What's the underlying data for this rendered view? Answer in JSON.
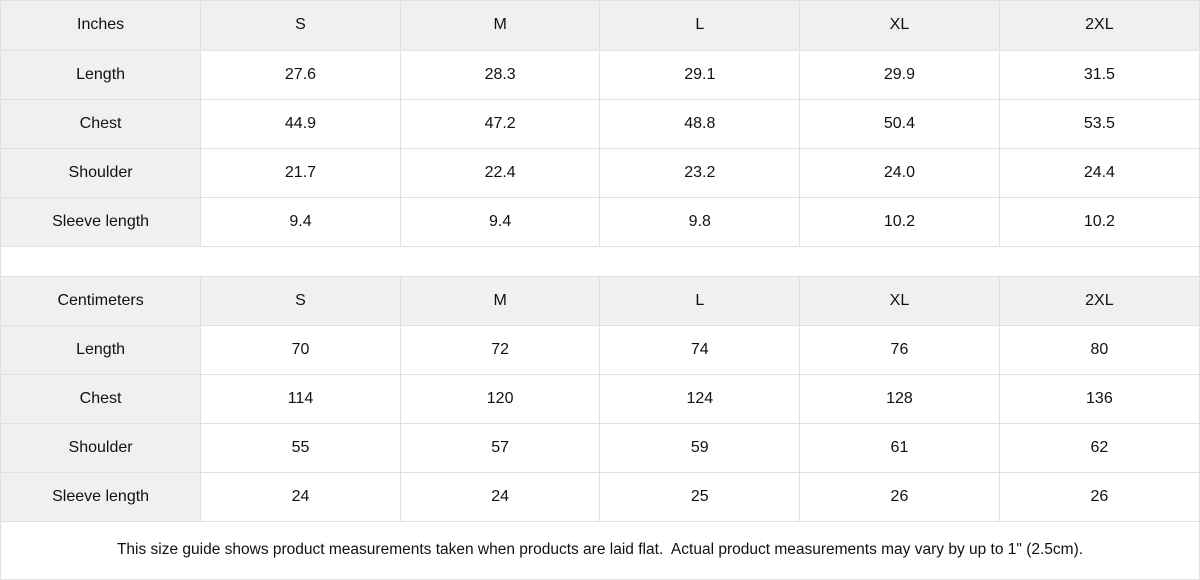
{
  "page": {
    "footer_note": "This size guide shows product measurements taken when products are laid flat.  Actual product measurements may vary by up to 1\" (2.5cm)."
  },
  "tables": [
    {
      "unit_label": "Inches",
      "columns": [
        "S",
        "M",
        "L",
        "XL",
        "2XL"
      ],
      "rows": [
        {
          "label": "Length",
          "values": [
            "27.6",
            "28.3",
            "29.1",
            "29.9",
            "31.5"
          ]
        },
        {
          "label": "Chest",
          "values": [
            "44.9",
            "47.2",
            "48.8",
            "50.4",
            "53.5"
          ]
        },
        {
          "label": "Shoulder",
          "values": [
            "21.7",
            "22.4",
            "23.2",
            "24.0",
            "24.4"
          ]
        },
        {
          "label": "Sleeve length",
          "values": [
            "9.4",
            "9.4",
            "9.8",
            "10.2",
            "10.2"
          ]
        }
      ]
    },
    {
      "unit_label": "Centimeters",
      "columns": [
        "S",
        "M",
        "L",
        "XL",
        "2XL"
      ],
      "rows": [
        {
          "label": "Length",
          "values": [
            "70",
            "72",
            "74",
            "76",
            "80"
          ]
        },
        {
          "label": "Chest",
          "values": [
            "114",
            "120",
            "124",
            "128",
            "136"
          ]
        },
        {
          "label": "Shoulder",
          "values": [
            "55",
            "57",
            "59",
            "61",
            "62"
          ]
        },
        {
          "label": "Sleeve length",
          "values": [
            "24",
            "24",
            "25",
            "26",
            "26"
          ]
        }
      ]
    }
  ],
  "colors": {
    "header_bg": "#f0f0f0",
    "border": "#e0e0e0",
    "text": "#111111",
    "cell_bg": "#ffffff"
  }
}
